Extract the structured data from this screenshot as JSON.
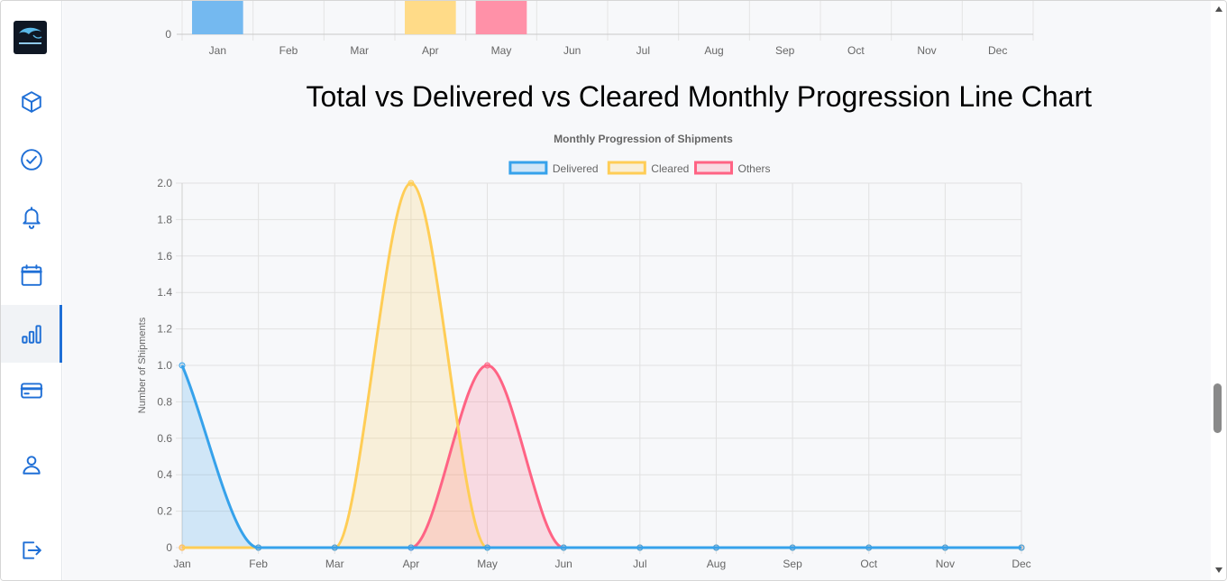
{
  "sidebar": {
    "logo_icon": "dolphin-logo",
    "items": [
      {
        "name": "sidebar-item-shipments",
        "icon": "box-icon",
        "active": false
      },
      {
        "name": "sidebar-item-cleared",
        "icon": "check-circle-icon",
        "active": false
      },
      {
        "name": "sidebar-item-notifications",
        "icon": "bell-icon",
        "active": false
      },
      {
        "name": "sidebar-item-calendar",
        "icon": "calendar-icon",
        "active": false
      },
      {
        "name": "sidebar-item-analytics",
        "icon": "bar-chart-icon",
        "active": true
      },
      {
        "name": "sidebar-item-payments",
        "icon": "credit-card-icon",
        "active": false
      },
      {
        "name": "sidebar-item-profile",
        "icon": "user-icon",
        "active": false
      },
      {
        "name": "sidebar-item-logout",
        "icon": "logout-icon",
        "active": false
      }
    ],
    "accent": "#1f6fd6"
  },
  "page": {
    "line_chart_heading": "Total vs Delivered vs Cleared Monthly Progression Line Chart"
  },
  "chart_data": [
    {
      "type": "bar",
      "categories": [
        "Jan",
        "Feb",
        "Mar",
        "Apr",
        "May",
        "Jun",
        "Jul",
        "Aug",
        "Sep",
        "Oct",
        "Nov",
        "Dec"
      ],
      "y_tick_visible": "0",
      "bars_visible": [
        {
          "category": "Jan",
          "color": "#74b9f0"
        },
        {
          "category": "Apr",
          "color": "#ffdb88"
        },
        {
          "category": "May",
          "color": "#ff91a8"
        }
      ]
    },
    {
      "type": "line",
      "title": "Monthly Progression of Shipments",
      "ylabel": "Number of Shipments",
      "ylim": [
        0,
        2
      ],
      "y_ticks": [
        "0",
        "0.2",
        "0.4",
        "0.6",
        "0.8",
        "1.0",
        "1.2",
        "1.4",
        "1.6",
        "1.8",
        "2.0"
      ],
      "categories": [
        "Jan",
        "Feb",
        "Mar",
        "Apr",
        "May",
        "Jun",
        "Jul",
        "Aug",
        "Sep",
        "Oct",
        "Nov",
        "Dec"
      ],
      "legend_position": "top",
      "grid": true,
      "series": [
        {
          "name": "Delivered",
          "values": [
            1,
            0,
            0,
            0,
            0,
            0,
            0,
            0,
            0,
            0,
            0,
            0
          ],
          "color": "#36a2eb",
          "fill": "rgba(54,162,235,0.2)"
        },
        {
          "name": "Cleared",
          "values": [
            0,
            0,
            0,
            2,
            0,
            0,
            0,
            0,
            0,
            0,
            0,
            0
          ],
          "color": "#ffcd56",
          "fill": "rgba(255,205,86,0.2)"
        },
        {
          "name": "Others",
          "values": [
            0,
            0,
            0,
            0,
            1,
            0,
            0,
            0,
            0,
            0,
            0,
            0
          ],
          "color": "#ff6384",
          "fill": "rgba(255,99,132,0.2)"
        }
      ]
    }
  ]
}
